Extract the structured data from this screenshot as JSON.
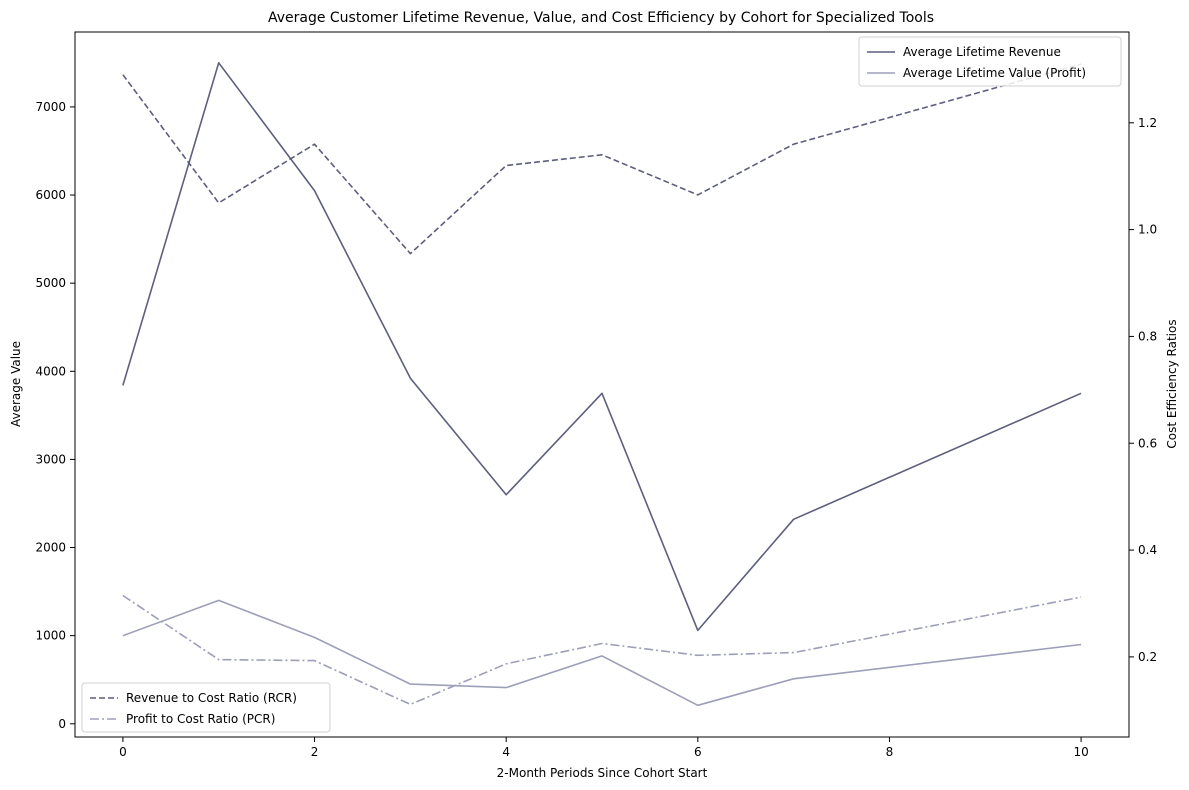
{
  "chart_data": {
    "type": "line",
    "title": "Average Customer Lifetime Revenue, Value, and Cost Efficiency by Cohort for Specialized Tools",
    "xlabel": "2-Month Periods Since Cohort Start",
    "ylabel": "Average Value",
    "y2label": "Cost Efficiency Ratios",
    "xlim": [
      -0.5,
      10.5
    ],
    "ylim": [
      -150,
      7850
    ],
    "y2lim": [
      0.05,
      1.37
    ],
    "x_ticks": [
      0,
      2,
      4,
      6,
      8,
      10
    ],
    "y_ticks": [
      0,
      1000,
      2000,
      3000,
      4000,
      5000,
      6000,
      7000
    ],
    "y2_ticks": [
      0.2,
      0.4,
      0.6,
      0.8,
      1.0,
      1.2
    ],
    "x_tick_labels": [
      "0",
      "2",
      "4",
      "6",
      "8",
      "10"
    ],
    "y_tick_labels": [
      "0",
      "1000",
      "2000",
      "3000",
      "4000",
      "5000",
      "6000",
      "7000"
    ],
    "y2_tick_labels": [
      "0.2",
      "0.4",
      "0.6",
      "0.8",
      "1.0",
      "1.2"
    ],
    "grid": false,
    "series": [
      {
        "name": "Average Lifetime Revenue",
        "axis": "left",
        "style": "solid",
        "color": "#5d5f7d",
        "x": [
          0,
          1,
          2,
          3,
          4,
          5,
          6,
          7,
          10
        ],
        "values": [
          3840,
          7500,
          6050,
          3920,
          2600,
          3750,
          1060,
          2320,
          3750
        ]
      },
      {
        "name": "Average Lifetime Value (Profit)",
        "axis": "left",
        "style": "solid",
        "color": "#9d9fb8",
        "x": [
          0,
          1,
          2,
          3,
          4,
          5,
          6,
          7,
          10
        ],
        "values": [
          1000,
          1400,
          980,
          450,
          410,
          770,
          210,
          510,
          900
        ]
      },
      {
        "name": "Revenue to Cost Ratio (RCR)",
        "axis": "right",
        "style": "dashed",
        "color": "#5d5f7d",
        "x": [
          0,
          1,
          2,
          3,
          4,
          5,
          6,
          7,
          10
        ],
        "values": [
          1.29,
          1.05,
          1.16,
          0.955,
          1.12,
          1.14,
          1.065,
          1.16,
          1.31
        ]
      },
      {
        "name": "Profit to Cost Ratio (PCR)",
        "axis": "right",
        "style": "dashdot",
        "color": "#9d9fb8",
        "x": [
          0,
          1,
          2,
          3,
          4,
          5,
          6,
          7,
          10
        ],
        "values": [
          0.315,
          0.195,
          0.193,
          0.111,
          0.187,
          0.225,
          0.203,
          0.208,
          0.312
        ]
      }
    ],
    "legends": [
      {
        "placement": "top-right",
        "entries": [
          "Average Lifetime Revenue",
          "Average Lifetime Value (Profit)"
        ]
      },
      {
        "placement": "bottom-left",
        "entries": [
          "Revenue to Cost Ratio (RCR)",
          "Profit to Cost Ratio (PCR)"
        ]
      }
    ]
  }
}
